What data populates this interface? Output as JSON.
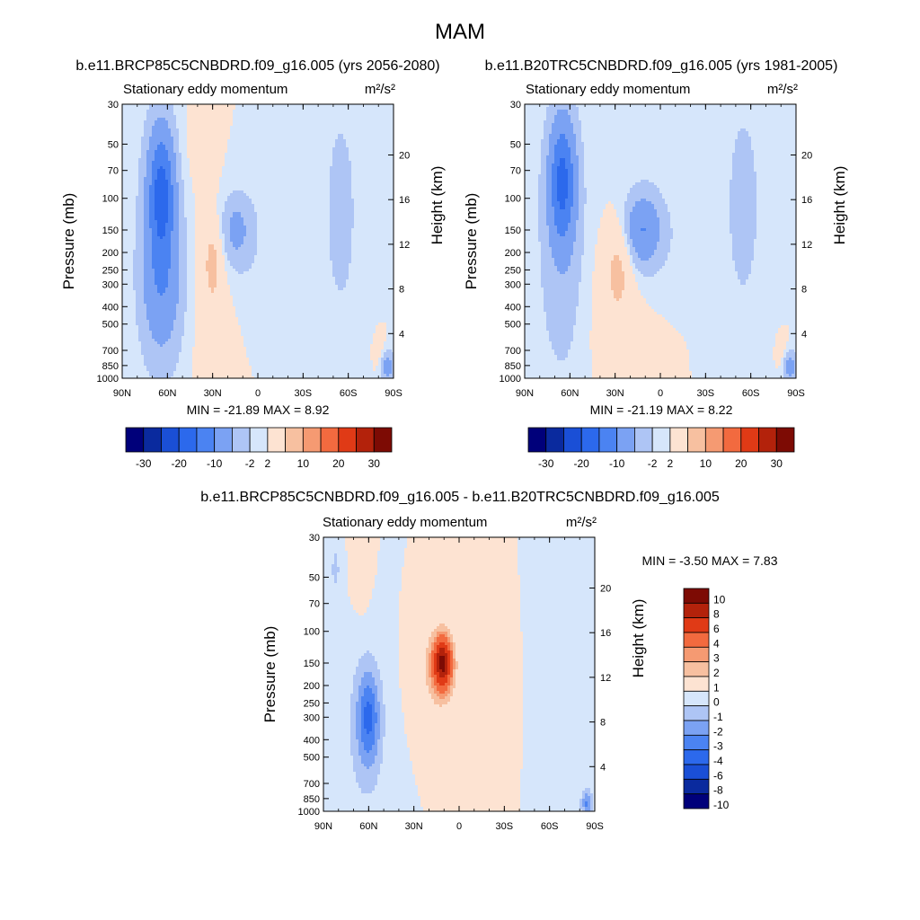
{
  "title": "MAM",
  "panels": [
    {
      "id": "future",
      "header": "b.e11.BRCP85C5CNBDRD.f09_g16.005 (yrs 2056-2080)",
      "left_label": "Stationary eddy momentum",
      "units": "m²/s²",
      "stats": "MIN = -21.89  MAX =   8.92"
    },
    {
      "id": "historical",
      "header": "b.e11.B20TRC5CNBDRD.f09_g16.005 (yrs 1981-2005)",
      "left_label": "Stationary eddy momentum",
      "units": "m²/s²",
      "stats": "MIN = -21.19  MAX =   8.22"
    },
    {
      "id": "difference",
      "header": "b.e11.BRCP85C5CNBDRD.f09_g16.005 - b.e11.B20TRC5CNBDRD.f09_g16.005",
      "left_label": "Stationary eddy momentum",
      "units": "m²/s²",
      "stats": "MIN =  -3.50  MAX =   7.83"
    }
  ],
  "chart_data": [
    {
      "type": "heatmap",
      "panel": "future",
      "title": "Stationary eddy momentum",
      "xlabel": "",
      "ylabel": "Pressure (mb)",
      "ylabel_right": "Height (km)",
      "x_ticks": [
        "90N",
        "60N",
        "30N",
        "0",
        "30S",
        "60S",
        "90S"
      ],
      "x_range": [
        90,
        -90
      ],
      "y_ticks": [
        30,
        50,
        70,
        100,
        150,
        200,
        250,
        300,
        400,
        500,
        700,
        850,
        1000
      ],
      "y_range": [
        30,
        1000
      ],
      "height_ticks": [
        4,
        8,
        12,
        16,
        20
      ],
      "min": -21.89,
      "max": 8.92,
      "features": [
        {
          "lat": 64,
          "p": 90,
          "rlat": 6,
          "rp": 0.55,
          "v": -14
        },
        {
          "lat": 64,
          "p": 180,
          "rlat": 12,
          "rp": 1.3,
          "v": -4
        },
        {
          "lat": 64,
          "p": 300,
          "rlat": 9,
          "rp": 0.6,
          "v": -6
        },
        {
          "lat": 15,
          "p": 150,
          "rlat": 7,
          "rp": 0.3,
          "v": -5
        },
        {
          "lat": 10,
          "p": 170,
          "rlat": 14,
          "rp": 0.6,
          "v": -2
        },
        {
          "lat": -55,
          "p": 120,
          "rlat": 12,
          "rp": 1.5,
          "v": -2.5
        },
        {
          "lat": 30,
          "p": 230,
          "rlat": 4,
          "rp": 0.35,
          "v": 6
        },
        {
          "lat": 30,
          "p": 320,
          "rlat": 10,
          "rp": 0.9,
          "v": 2
        },
        {
          "lat": 42,
          "p": 50,
          "rlat": 9,
          "rp": 0.5,
          "v": 1.2
        },
        {
          "lat": -85,
          "p": 850,
          "rlat": 4,
          "rp": 0.15,
          "v": -8
        },
        {
          "lat": -81,
          "p": 780,
          "rlat": 3,
          "rp": 0.18,
          "v": 4
        }
      ]
    },
    {
      "type": "heatmap",
      "panel": "historical",
      "title": "Stationary eddy momentum",
      "xlabel": "",
      "ylabel": "Pressure (mb)",
      "ylabel_right": "Height (km)",
      "x_ticks": [
        "90N",
        "60N",
        "30N",
        "0",
        "30S",
        "60S",
        "90S"
      ],
      "x_range": [
        90,
        -90
      ],
      "y_ticks": [
        30,
        50,
        70,
        100,
        150,
        200,
        250,
        300,
        400,
        500,
        700,
        850,
        1000
      ],
      "y_range": [
        30,
        1000
      ],
      "height_ticks": [
        4,
        8,
        12,
        16,
        20
      ],
      "min": -21.19,
      "max": 8.22,
      "features": [
        {
          "lat": 65,
          "p": 80,
          "rlat": 6,
          "rp": 0.55,
          "v": -14
        },
        {
          "lat": 65,
          "p": 180,
          "rlat": 12,
          "rp": 1.3,
          "v": -4
        },
        {
          "lat": 12,
          "p": 150,
          "rlat": 8,
          "rp": 0.3,
          "v": -8
        },
        {
          "lat": 10,
          "p": 170,
          "rlat": 15,
          "rp": 0.6,
          "v": -3
        },
        {
          "lat": -22,
          "p": 180,
          "rlat": 8,
          "rp": 0.4,
          "v": -1.5
        },
        {
          "lat": -55,
          "p": 110,
          "rlat": 13,
          "rp": 1.5,
          "v": -2.5
        },
        {
          "lat": 28,
          "p": 250,
          "rlat": 6,
          "rp": 0.4,
          "v": 6
        },
        {
          "lat": 25,
          "p": 380,
          "rlat": 17,
          "rp": 0.8,
          "v": 2
        },
        {
          "lat": -85,
          "p": 850,
          "rlat": 4,
          "rp": 0.15,
          "v": -8
        },
        {
          "lat": -81,
          "p": 780,
          "rlat": 3,
          "rp": 0.18,
          "v": 4
        }
      ]
    },
    {
      "type": "heatmap",
      "panel": "difference",
      "title": "Stationary eddy momentum",
      "xlabel": "",
      "ylabel": "Pressure (mb)",
      "ylabel_right": "Height (km)",
      "x_ticks": [
        "90N",
        "60N",
        "30N",
        "0",
        "30S",
        "60S",
        "90S"
      ],
      "x_range": [
        90,
        -90
      ],
      "y_ticks": [
        30,
        50,
        70,
        100,
        150,
        200,
        250,
        300,
        400,
        500,
        700,
        850,
        1000
      ],
      "y_range": [
        30,
        1000
      ],
      "height_ticks": [
        4,
        8,
        12,
        16,
        20
      ],
      "min": -3.5,
      "max": 7.83,
      "features": [
        {
          "lat": 11,
          "p": 150,
          "rlat": 4,
          "rp": 0.22,
          "v": 8
        },
        {
          "lat": 13,
          "p": 160,
          "rlat": 10,
          "rp": 0.45,
          "v": 3
        },
        {
          "lat": -25,
          "p": 200,
          "rlat": 5,
          "rp": 0.4,
          "v": 2
        },
        {
          "lat": 60,
          "p": 300,
          "rlat": 5,
          "rp": 0.4,
          "v": -3
        },
        {
          "lat": 62,
          "p": 350,
          "rlat": 10,
          "rp": 0.8,
          "v": -1.5
        },
        {
          "lat": 82,
          "p": 45,
          "rlat": 3,
          "rp": 0.3,
          "v": -1.2
        },
        {
          "lat": 65,
          "p": 40,
          "rlat": 4,
          "rp": 0.4,
          "v": 1.3
        },
        {
          "lat": -60,
          "p": 180,
          "rlat": 6,
          "rp": 0.5,
          "v": -0.5
        },
        {
          "lat": -85,
          "p": 900,
          "rlat": 3,
          "rp": 0.12,
          "v": -3.2
        }
      ]
    }
  ],
  "colorbars": [
    {
      "panel": "future",
      "orientation": "horizontal",
      "labels": [
        "-30",
        "-20",
        "-10",
        "-2",
        "2",
        "10",
        "20",
        "30"
      ],
      "levels": [
        -30,
        -25,
        -20,
        -15,
        -10,
        -5,
        -2,
        0,
        2,
        5,
        10,
        15,
        20,
        25,
        30
      ]
    },
    {
      "panel": "historical",
      "orientation": "horizontal",
      "labels": [
        "-30",
        "-20",
        "-10",
        "-2",
        "2",
        "10",
        "20",
        "30"
      ],
      "levels": [
        -30,
        -25,
        -20,
        -15,
        -10,
        -5,
        -2,
        0,
        2,
        5,
        10,
        15,
        20,
        25,
        30
      ]
    },
    {
      "panel": "difference",
      "orientation": "vertical",
      "labels": [
        "10",
        "8",
        "6",
        "4",
        "3",
        "2",
        "1",
        "0",
        "-1",
        "-2",
        "-3",
        "-4",
        "-6",
        "-8",
        "-10"
      ],
      "levels": [
        -10,
        -8,
        -6,
        -4,
        -3,
        -2,
        -1,
        0,
        1,
        2,
        3,
        4,
        6,
        8,
        10
      ]
    }
  ],
  "colors": {
    "palette": [
      "#00007a",
      "#0a2a9e",
      "#1a4fd6",
      "#2c69ec",
      "#4b83f2",
      "#7ba2f3",
      "#aec5f5",
      "#d6e6fb",
      "#fde3d2",
      "#f7c0a0",
      "#f59a72",
      "#f26a3f",
      "#e03a16",
      "#b3220b",
      "#7d0b04"
    ]
  }
}
